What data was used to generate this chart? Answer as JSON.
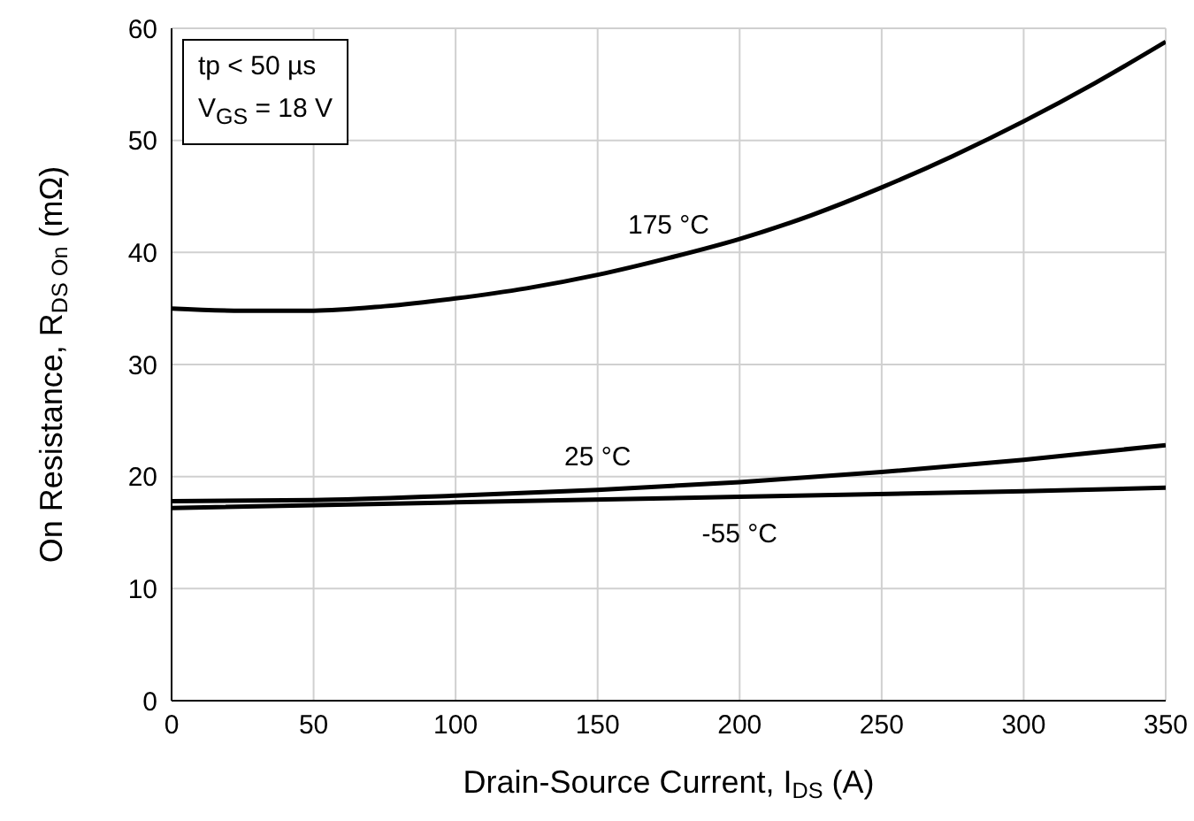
{
  "chart_data": {
    "type": "line",
    "xlabel": "Drain-Source Current, I$_{DS}$ (A)",
    "ylabel": "On Resistance, R$_{DS On}$ (mΩ)",
    "series": [
      {
        "name": "175 °C",
        "color": "#000000",
        "x": [
          0,
          25,
          50,
          75,
          100,
          125,
          150,
          175,
          200,
          225,
          250,
          275,
          300,
          325,
          350
        ],
        "values": [
          35,
          34.8,
          34.8,
          35.2,
          35.9,
          36.8,
          38,
          39.5,
          41.2,
          43.3,
          45.8,
          48.6,
          51.7,
          55.1,
          58.8
        ]
      },
      {
        "name": "25 °C",
        "color": "#000000",
        "x": [
          0,
          50,
          100,
          150,
          200,
          250,
          300,
          350
        ],
        "values": [
          17.8,
          17.9,
          18.3,
          18.8,
          19.5,
          20.4,
          21.5,
          22.8
        ]
      },
      {
        "name": "-55 °C",
        "color": "#000000",
        "x": [
          0,
          100,
          200,
          300,
          350
        ],
        "values": [
          17.2,
          17.7,
          18.2,
          18.7,
          19
        ]
      }
    ],
    "annotations": [
      "tp < 50 µs",
      "V$_{GS}$ = 18 V"
    ],
    "xlim": [
      0,
      350
    ],
    "xticks": [
      0,
      50,
      100,
      150,
      200,
      250,
      300,
      350
    ],
    "ylim": [
      0,
      60
    ],
    "yticks": [
      0,
      10,
      20,
      30,
      40,
      50,
      60
    ],
    "grid": true,
    "marker": "none",
    "line_style": "solid"
  }
}
